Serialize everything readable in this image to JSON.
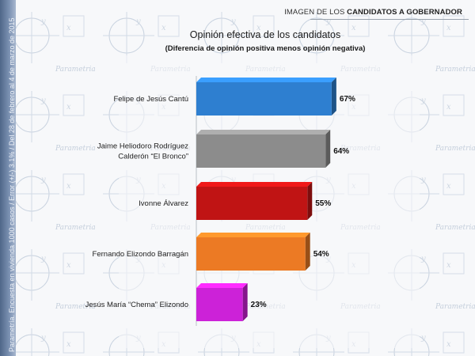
{
  "header": {
    "prefix": "IMAGEN DE LOS",
    "bold": "CANDIDATOS A GOBERNADOR"
  },
  "side_note": "Parametría. Encuesta en vivienda 1000 casos / Error (+/-) 3.1% / Del 28 de febrero al 4 de marzo de 2015",
  "chart_data": {
    "type": "bar",
    "orientation": "horizontal",
    "title": "Opinión efectiva de los candidatos",
    "subtitle": "(Diferencia de opinión positiva menos opinión negativa)",
    "categories": [
      [
        "Felipe de Jesús Cantú"
      ],
      [
        "Jaime Heliodoro Rodríguez",
        "Calderón  “El Bronco”"
      ],
      [
        "Ivonne Álvarez"
      ],
      [
        "Fernando Elizondo Barragán"
      ],
      [
        "Jesús María “Chema” Elizondo"
      ]
    ],
    "values": [
      67,
      64,
      55,
      54,
      23
    ],
    "value_labels": [
      "67%",
      "64%",
      "55%",
      "54%",
      "23%"
    ],
    "colors": [
      "#2e7fd0",
      "#8c8c8c",
      "#c01414",
      "#ec7a24",
      "#cc22d8"
    ],
    "xlim": [
      0,
      100
    ],
    "grid": false,
    "legend": "none"
  }
}
